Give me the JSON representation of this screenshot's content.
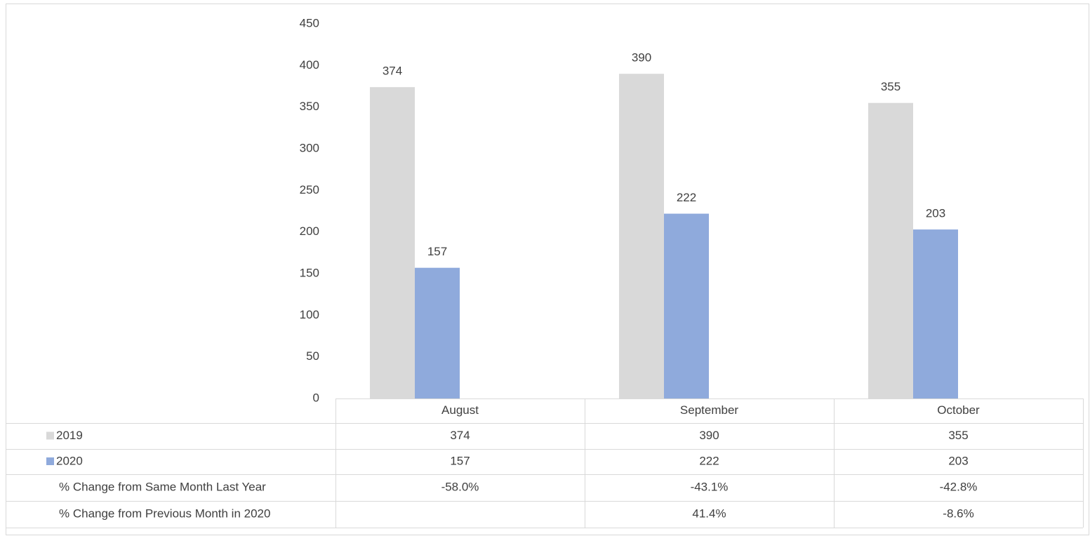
{
  "chart_data": {
    "type": "bar",
    "categories": [
      "August",
      "September",
      "October"
    ],
    "series": [
      {
        "name": "2019",
        "color": "#d9d9d9",
        "values": [
          374,
          390,
          355
        ]
      },
      {
        "name": "2020",
        "color": "#8faadc",
        "values": [
          157,
          222,
          203
        ]
      }
    ],
    "ylim": [
      0,
      450
    ],
    "yticks": [
      0,
      50,
      100,
      150,
      200,
      250,
      300,
      350,
      400,
      450
    ],
    "grid": false,
    "table_rows": [
      {
        "name": "% Change from Same Month Last Year",
        "values": [
          -58.0,
          -43.1,
          -42.8
        ],
        "value_labels": [
          "-58.0%",
          "-43.1%",
          "-42.8%"
        ]
      },
      {
        "name": "% Change from Previous Month in 2020",
        "values": [
          null,
          41.4,
          -8.6
        ],
        "value_labels": [
          null,
          "41.4%",
          "-8.6%"
        ]
      }
    ]
  }
}
